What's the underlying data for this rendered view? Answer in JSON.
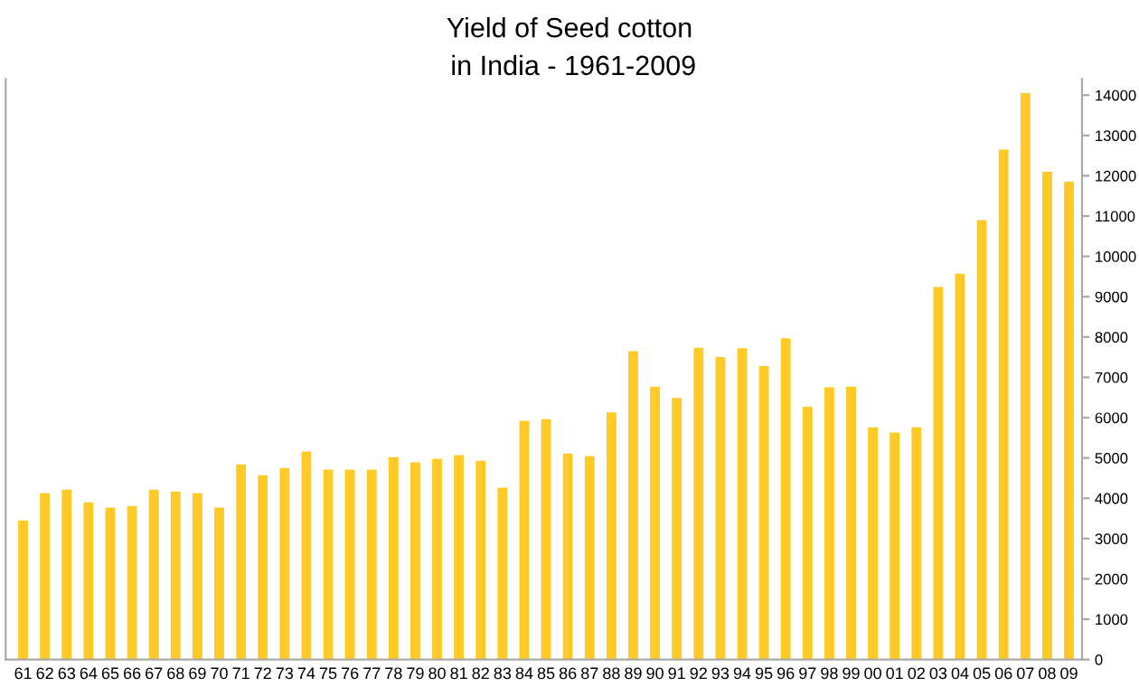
{
  "chart_data": {
    "type": "bar",
    "title": "Yield of Seed cotton\n in India - 1961-2009",
    "categories": [
      "61",
      "62",
      "63",
      "64",
      "65",
      "66",
      "67",
      "68",
      "69",
      "70",
      "71",
      "72",
      "73",
      "74",
      "75",
      "76",
      "77",
      "78",
      "79",
      "80",
      "81",
      "82",
      "83",
      "84",
      "85",
      "86",
      "87",
      "88",
      "89",
      "90",
      "91",
      "92",
      "93",
      "94",
      "95",
      "96",
      "97",
      "98",
      "99",
      "00",
      "01",
      "02",
      "03",
      "04",
      "05",
      "06",
      "07",
      "08",
      "09"
    ],
    "values": [
      3450,
      4130,
      4210,
      3900,
      3770,
      3810,
      4210,
      4170,
      4130,
      3770,
      4840,
      4570,
      4750,
      5160,
      4710,
      4710,
      4710,
      5020,
      4890,
      4980,
      5070,
      4930,
      4260,
      5920,
      5960,
      5110,
      5050,
      6130,
      7650,
      6770,
      6490,
      7730,
      7500,
      7720,
      7280,
      7970,
      6270,
      6750,
      6770,
      5760,
      5630,
      5760,
      9240,
      9570,
      10900,
      12650,
      14050,
      12100,
      11850
    ],
    "color": "#ffc926",
    "ylim": [
      0,
      14400
    ],
    "yticks": [
      0,
      1000,
      2000,
      3000,
      4000,
      5000,
      6000,
      7000,
      8000,
      9000,
      10000,
      11000,
      12000,
      13000,
      14000
    ],
    "grid": false
  }
}
